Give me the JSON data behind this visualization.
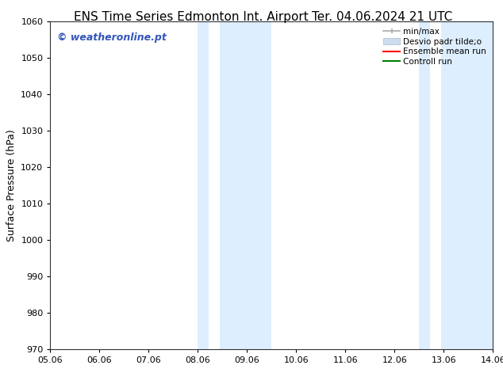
{
  "title_left": "ENS Time Series Edmonton Int. Airport",
  "title_right": "Ter. 04.06.2024 21 UTC",
  "ylabel": "Surface Pressure (hPa)",
  "xlim": [
    0,
    9.0
  ],
  "ylim": [
    970,
    1060
  ],
  "yticks": [
    970,
    980,
    990,
    1000,
    1010,
    1020,
    1030,
    1040,
    1050,
    1060
  ],
  "xtick_labels": [
    "05.06",
    "06.06",
    "07.06",
    "08.06",
    "09.06",
    "10.06",
    "11.06",
    "12.06",
    "13.06",
    "14.06"
  ],
  "background_color": "#ffffff",
  "plot_bg_color": "#ffffff",
  "shaded_bands": [
    {
      "xstart": 3.0,
      "xend": 3.22,
      "color": "#ddeeff"
    },
    {
      "xstart": 3.44,
      "xend": 4.5,
      "color": "#ddeeff"
    },
    {
      "xstart": 7.5,
      "xend": 7.72,
      "color": "#ddeeff"
    },
    {
      "xstart": 7.94,
      "xend": 9.0,
      "color": "#ddeeff"
    }
  ],
  "watermark_text": "© weatheronline.pt",
  "watermark_color": "#3355bb",
  "watermark_fontsize": 9,
  "legend_labels": [
    "min/max",
    "Desvio padr tilde;o",
    "Ensemble mean run",
    "Controll run"
  ],
  "legend_colors": [
    "#999999",
    "#ccdded",
    "red",
    "green"
  ],
  "title_fontsize": 11,
  "axis_label_fontsize": 9,
  "tick_fontsize": 8,
  "spine_color": "#333333"
}
